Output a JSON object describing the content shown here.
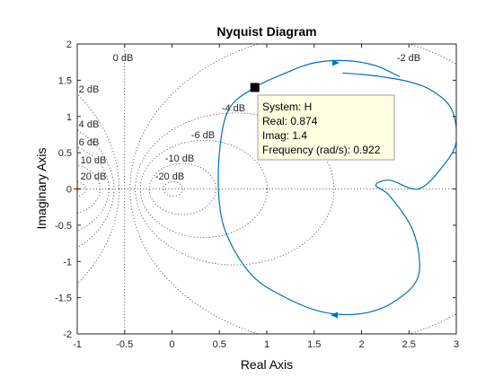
{
  "chart_data": {
    "type": "line",
    "title": "Nyquist Diagram",
    "xlabel": "Real Axis",
    "ylabel": "Imaginary Axis",
    "xlim": [
      -1,
      3
    ],
    "ylim": [
      -2,
      2
    ],
    "grid": "M-circles (dB)",
    "x_ticks": [
      "-1",
      "-0.5",
      "0",
      "0.5",
      "1",
      "1.5",
      "2",
      "2.5",
      "3"
    ],
    "y_ticks": [
      "-2",
      "-1.5",
      "-1",
      "-0.5",
      "0",
      "0.5",
      "1",
      "1.5",
      "2"
    ],
    "m_circles": [
      {
        "label": "0 dB",
        "db": 0
      },
      {
        "label": "2 dB",
        "db": 2
      },
      {
        "label": "4 dB",
        "db": 4
      },
      {
        "label": "6 dB",
        "db": 6
      },
      {
        "label": "10 dB",
        "db": 10
      },
      {
        "label": "20 dB",
        "db": 20
      },
      {
        "label": "-2 dB",
        "db": -2
      },
      {
        "label": "-4 dB",
        "db": -4
      },
      {
        "label": "-6 dB",
        "db": -6
      },
      {
        "label": "-10 dB",
        "db": -10
      },
      {
        "label": "-20 dB",
        "db": -20
      }
    ],
    "series": [
      {
        "color": "#0072bd",
        "x": [
          2.4,
          2.15,
          1.85,
          1.5,
          1.2,
          0.874,
          0.6,
          0.5,
          0.5,
          0.6,
          0.85,
          1.2,
          1.6,
          2.0,
          2.35,
          2.6,
          2.55,
          2.3,
          2.15,
          2.3,
          2.6,
          2.85,
          3.0,
          2.95,
          2.75,
          2.5,
          2.2,
          2.0,
          1.8
        ],
        "y": [
          1.55,
          1.7,
          1.77,
          1.74,
          1.6,
          1.4,
          1.1,
          0.5,
          -0.2,
          -0.7,
          -1.2,
          -1.5,
          -1.7,
          -1.72,
          -1.55,
          -1.2,
          -0.6,
          -0.1,
          0.05,
          0.12,
          0.0,
          0.3,
          0.65,
          1.1,
          1.35,
          1.48,
          1.55,
          1.58,
          1.6
        ]
      }
    ],
    "critical_point": {
      "x": -1,
      "y": 0,
      "marker": "+",
      "color": "#ff0000"
    },
    "datatip": {
      "x": 0.874,
      "y": 1.4,
      "lines": [
        "System: H",
        "Real: 0.874",
        "Imag: 1.4",
        "Frequency (rad/s): 0.922"
      ]
    }
  }
}
